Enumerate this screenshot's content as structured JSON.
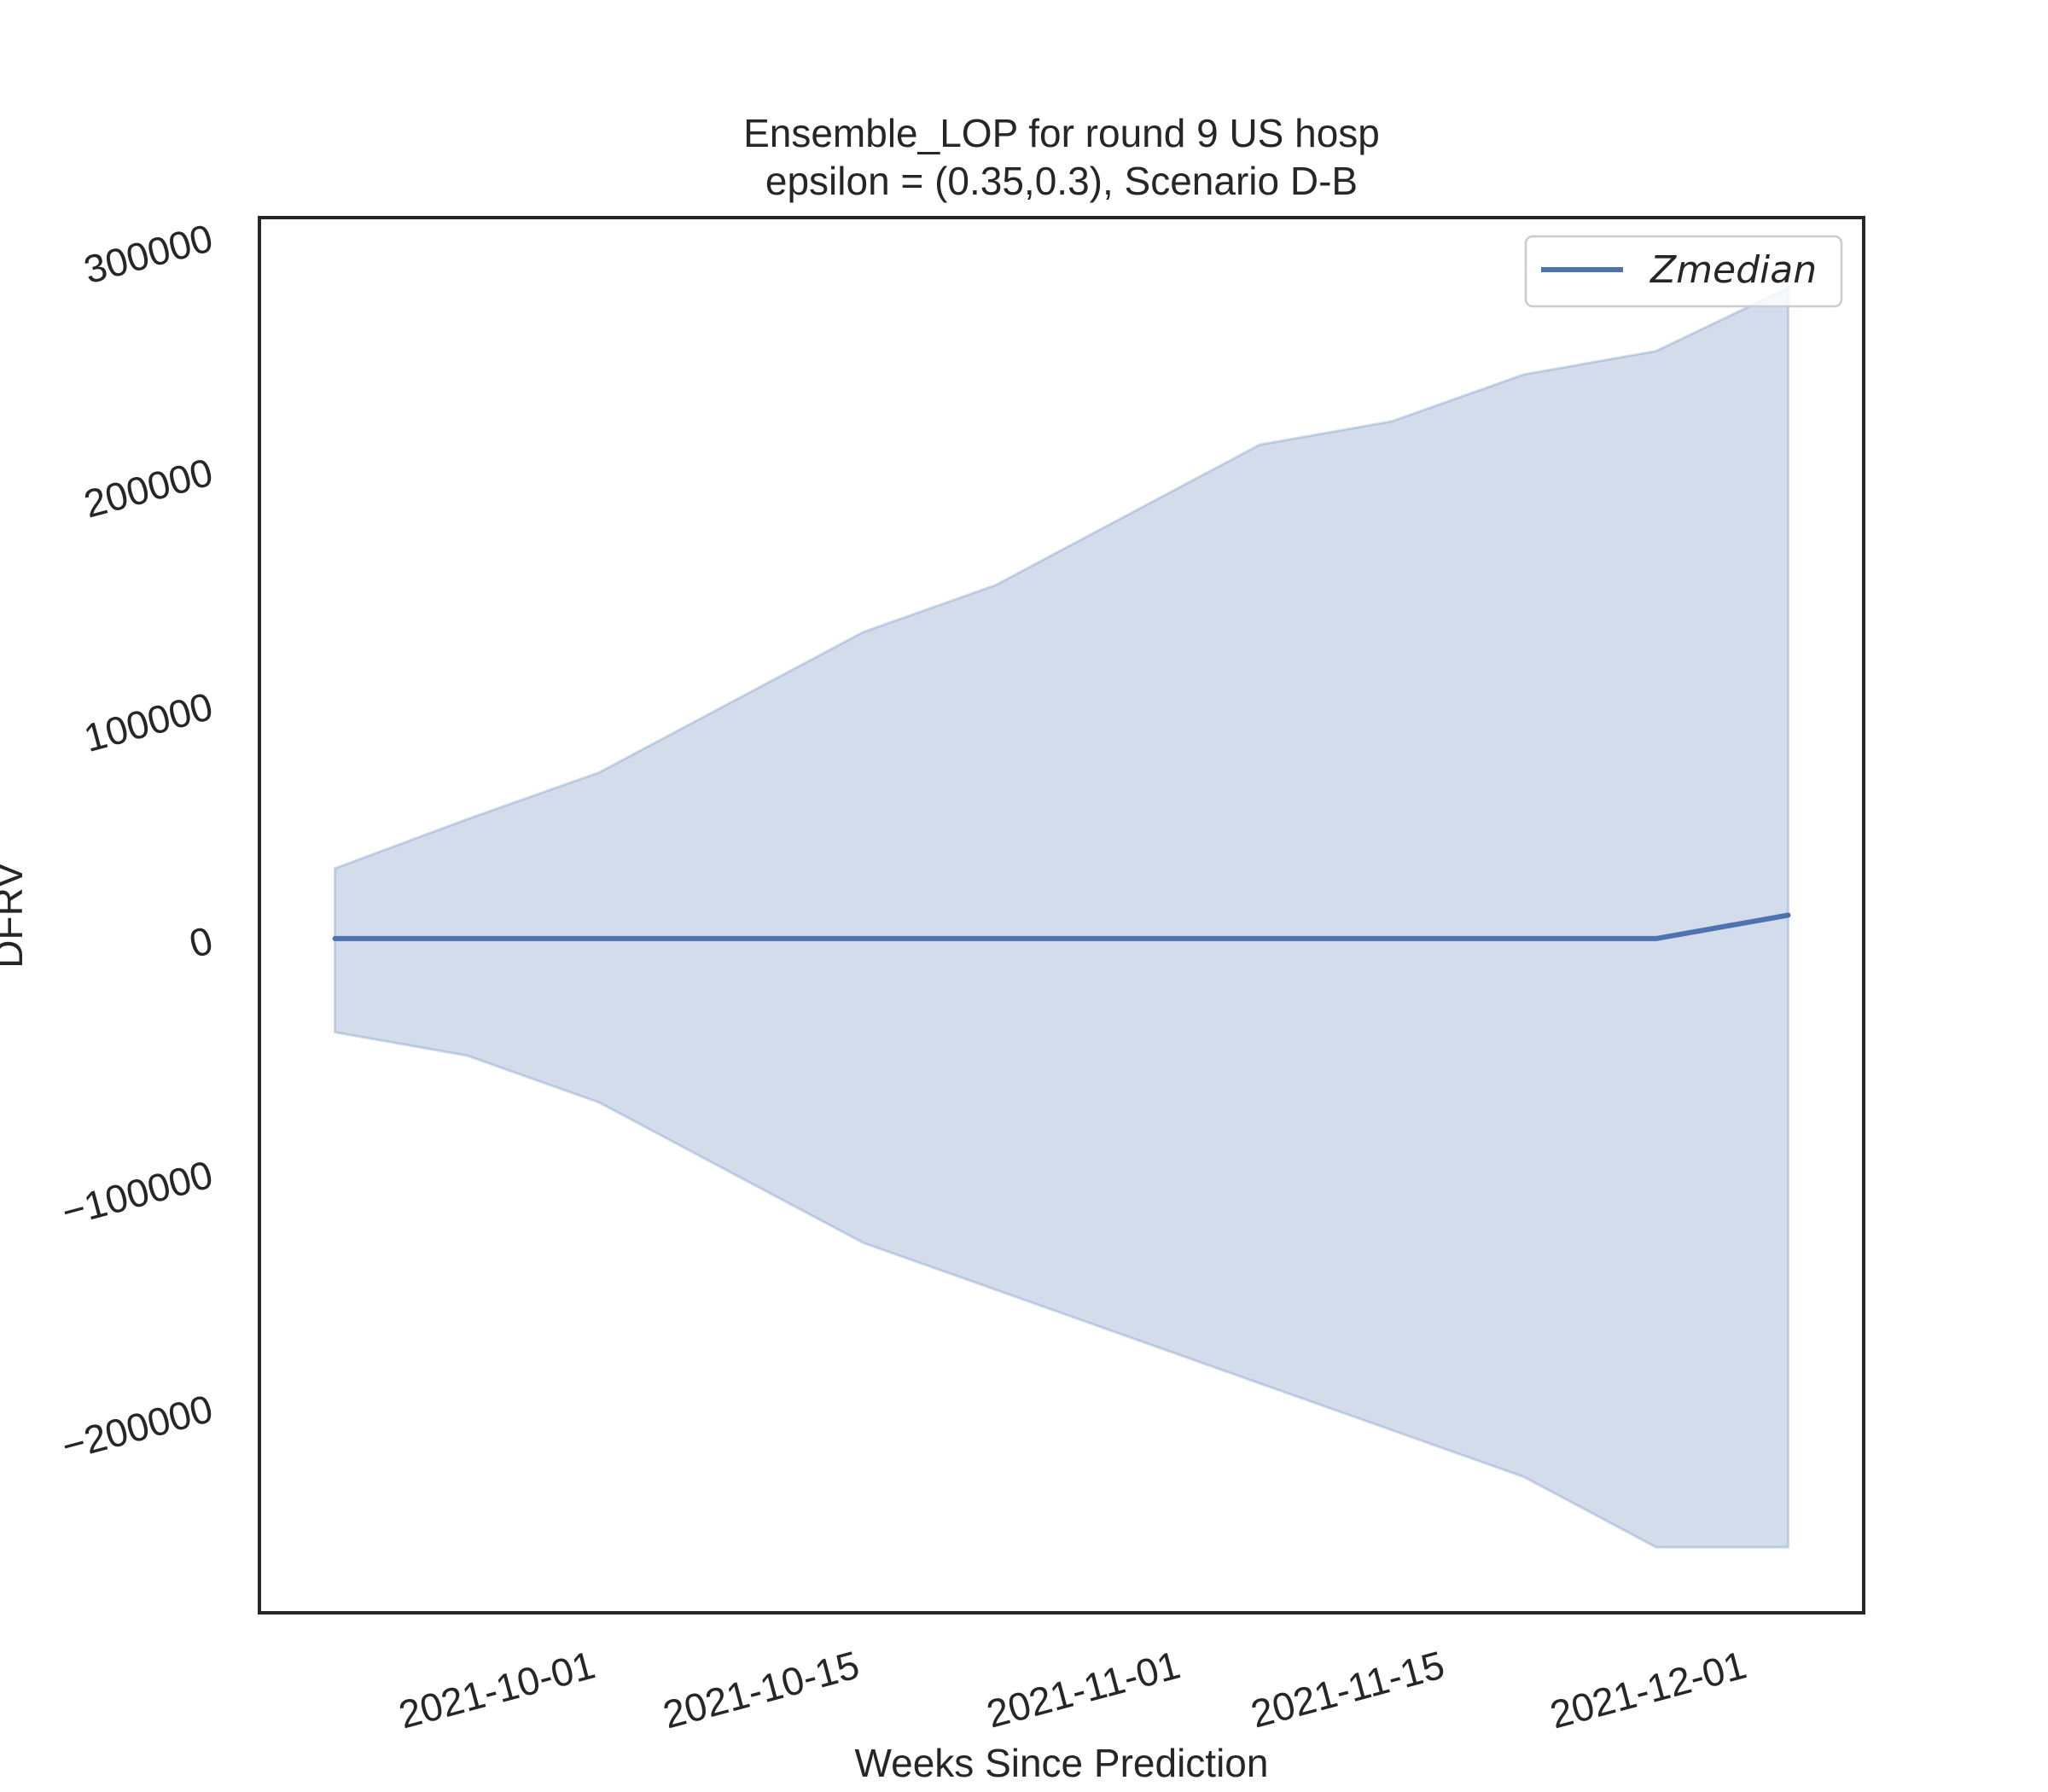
{
  "chart_data": {
    "type": "line",
    "title": "Ensemble_LOP for round 9 US  hosp",
    "subtitle": "epsilon = (0.35,0.3), Scenario D-B",
    "xlabel": "Weeks Since Prediction",
    "ylabel": "DFRV",
    "x": [
      "2021-09-18",
      "2021-09-25",
      "2021-10-02",
      "2021-10-09",
      "2021-10-16",
      "2021-10-23",
      "2021-10-30",
      "2021-11-06",
      "2021-11-13",
      "2021-11-20",
      "2021-11-27",
      "2021-12-04"
    ],
    "x_tick_labels": [
      "2021-10-01",
      "2021-10-15",
      "2021-11-01",
      "2021-11-15",
      "2021-12-01"
    ],
    "x_tick_dates": [
      "2021-10-01",
      "2021-10-15",
      "2021-11-01",
      "2021-11-15",
      "2021-12-01"
    ],
    "xlim": [
      "2021-09-14",
      "2021-12-08"
    ],
    "y_ticks": [
      -200000,
      -100000,
      0,
      100000,
      200000,
      300000
    ],
    "y_tick_labels": [
      "−200000",
      "−100000",
      "0",
      "100000",
      "200000",
      "300000"
    ],
    "ylim": [
      -288000,
      308000
    ],
    "series": [
      {
        "name": "Zmedian",
        "color": "#4c72b0",
        "values": [
          0,
          0,
          0,
          0,
          0,
          0,
          0,
          0,
          0,
          0,
          0,
          10000
        ]
      }
    ],
    "band": {
      "color": "#4c72b0",
      "upper": [
        30000,
        51000,
        71000,
        101000,
        131000,
        151000,
        181000,
        211000,
        221000,
        241000,
        251000,
        278000
      ],
      "lower": [
        -40000,
        -50000,
        -70000,
        -100000,
        -130000,
        -150000,
        -170000,
        -190000,
        -210000,
        -230000,
        -260000,
        -260000
      ]
    },
    "legend": {
      "position": "top-right",
      "entries": [
        "Zmedian"
      ]
    },
    "grid": false
  }
}
